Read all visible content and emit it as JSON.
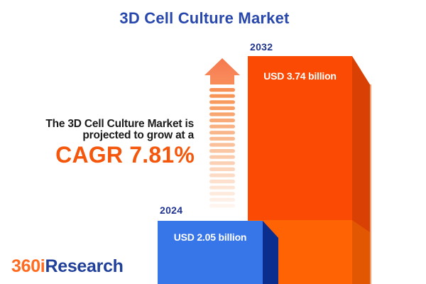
{
  "title": "3D Cell Culture Market",
  "tagline": {
    "line1": "The 3D Cell Culture Market is",
    "line2": "projected to grow at a",
    "cagr_label": "CAGR 7.81%"
  },
  "chart_data": {
    "type": "bar",
    "title": "3D Cell Culture Market",
    "categories": [
      "2024",
      "2032"
    ],
    "values": [
      2.05,
      3.74
    ],
    "value_labels": [
      "USD 2.05 billion",
      "USD 3.74 billion"
    ],
    "unit": "USD billions",
    "growth": {
      "metric": "CAGR",
      "percent": 7.81
    },
    "legend": "none",
    "axes": "none",
    "bar_colors": [
      {
        "front": "#3776E8",
        "side": "#0B2D8D"
      },
      {
        "front": "#FB4A04",
        "side": "#D84004",
        "front_below_2024_level": "#FF6304",
        "side_below_2024_level": "#E25702",
        "right_edge_highlight": "#F49C6E"
      }
    ],
    "layout_hints": {
      "orientation": "vertical",
      "style": "3d-extruded-bars",
      "2032_bar_lower_section_marks_2024_level": true
    }
  },
  "icons": {
    "growth_arrow": "striped-up-arrow",
    "arrow_color_top": "#F5764B",
    "arrow_color_fade": "#FFF7F2"
  },
  "colors": {
    "background": "#FFFFFF",
    "title_text": "#2847AC",
    "year_label_text": "#1F338F",
    "tagline_text": "#1B1B1B",
    "cagr_text": "#F4570B",
    "bar_value_text": "#FFFFFF"
  },
  "brand": {
    "part1": "360i",
    "part2": "Research",
    "part1_color": "#FF6B21",
    "part2_color": "#21409A"
  }
}
